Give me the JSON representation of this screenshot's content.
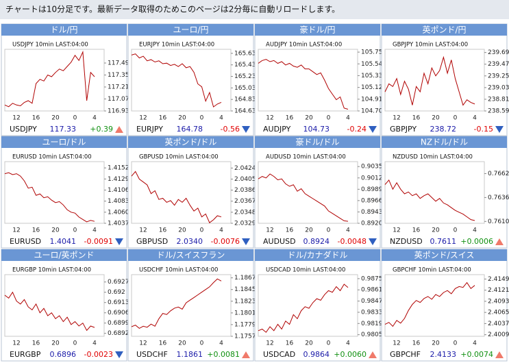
{
  "banner": "チャートは10分足です。最新データ取得のためこのページは2分毎に自動リロードします。",
  "chart_data": [
    {
      "type": "line",
      "title": "ドル/円",
      "subtitle": "USDJPY 10min LAST:04:00",
      "symbol": "USDJPY",
      "last": 117.33,
      "change": {
        "value": 0.39,
        "label": "+0.39"
      },
      "color": "#b00000",
      "xticks": [
        "12",
        "16",
        "20",
        "0",
        "4"
      ],
      "ylim": [
        116.93,
        117.65
      ],
      "yticks": [
        116.93,
        117.07,
        117.21,
        117.35,
        117.49
      ],
      "values": [
        117.0,
        116.98,
        117.02,
        117.0,
        116.99,
        117.03,
        117.05,
        117.02,
        117.25,
        117.3,
        117.28,
        117.35,
        117.33,
        117.38,
        117.42,
        117.4,
        117.45,
        117.5,
        117.58,
        117.52,
        117.62,
        117.05,
        117.38,
        117.33
      ]
    },
    {
      "type": "line",
      "title": "ユーロ/円",
      "subtitle": "EURJPY 10min LAST:04:00",
      "symbol": "EURJPY",
      "last": 164.78,
      "change": {
        "value": -0.56,
        "label": "-0.56"
      },
      "color": "#b00000",
      "xticks": [
        "12",
        "16",
        "20",
        "0",
        "4"
      ],
      "ylim": [
        164.63,
        165.7
      ],
      "yticks": [
        164.63,
        164.83,
        165.03,
        165.23,
        165.43,
        165.63
      ],
      "values": [
        165.6,
        165.62,
        165.55,
        165.58,
        165.5,
        165.52,
        165.48,
        165.5,
        165.45,
        165.46,
        165.42,
        165.44,
        165.4,
        165.45,
        165.38,
        165.4,
        165.3,
        165.1,
        165.05,
        164.8,
        164.95,
        164.7,
        164.75,
        164.78
      ]
    },
    {
      "type": "line",
      "title": "豪ドル/円",
      "subtitle": "AUDJPY 10min LAST:04:00",
      "symbol": "AUDJPY",
      "last": 104.73,
      "change": {
        "value": -0.24,
        "label": "-0.24"
      },
      "color": "#b00000",
      "xticks": [
        "12",
        "16",
        "20",
        "0",
        "4"
      ],
      "ylim": [
        104.7,
        105.8
      ],
      "yticks": [
        {
          "value": 104.7,
          "label": "104.70"
        },
        104.91,
        105.12,
        105.33,
        105.54,
        105.75
      ],
      "values": [
        105.55,
        105.6,
        105.62,
        105.58,
        105.6,
        105.55,
        105.58,
        105.52,
        105.55,
        105.5,
        105.48,
        105.52,
        105.45,
        105.45,
        105.4,
        105.35,
        105.38,
        105.25,
        105.1,
        105.0,
        104.9,
        104.95,
        104.75,
        104.73
      ]
    },
    {
      "type": "line",
      "title": "英ポンド/円",
      "subtitle": "GBPJPY 10min LAST:04:00",
      "symbol": "GBPJPY",
      "last": 238.72,
      "change": {
        "value": -0.15,
        "label": "-0.15"
      },
      "color": "#b00000",
      "xticks": [
        "12",
        "16",
        "20",
        "0",
        "4"
      ],
      "ylim": [
        238.59,
        239.75
      ],
      "yticks": [
        238.59,
        238.81,
        239.03,
        239.25,
        239.47,
        239.69
      ],
      "values": [
        238.95,
        239.1,
        239.05,
        239.2,
        238.9,
        239.15,
        239.0,
        238.7,
        239.05,
        238.95,
        239.3,
        239.1,
        239.4,
        239.25,
        239.35,
        239.6,
        239.3,
        239.55,
        239.2,
        238.95,
        238.7,
        238.8,
        238.75,
        238.72
      ]
    },
    {
      "type": "line",
      "title": "ユーロ/ドル",
      "subtitle": "EURUSD 10min LAST:04:00",
      "symbol": "EURUSD",
      "last": 1.4041,
      "change": {
        "value": -0.0091,
        "label": "-0.0091"
      },
      "color": "#b00000",
      "xticks": [
        "12",
        "16",
        "20",
        "0",
        "4"
      ],
      "ylim": [
        1.4037,
        1.4165
      ],
      "yticks": [
        1.4037,
        {
          "value": 1.406,
          "label": "1.4060"
        },
        1.4083,
        1.4106,
        1.4129,
        1.4152
      ],
      "values": [
        1.414,
        1.4142,
        1.4138,
        1.414,
        1.4135,
        1.4125,
        1.411,
        1.4112,
        1.4095,
        1.4098,
        1.409,
        1.4092,
        1.4085,
        1.408,
        1.4082,
        1.4075,
        1.4065,
        1.406,
        1.4058,
        1.405,
        1.4045,
        1.404,
        1.4043,
        1.4041
      ]
    },
    {
      "type": "line",
      "title": "英ポンド/ドル",
      "subtitle": "GBPUSD 10min LAST:04:00",
      "symbol": "GBPUSD",
      "last": {
        "value": 2.034,
        "label": "2.0340"
      },
      "change": {
        "value": -0.0076,
        "label": "-0.0076"
      },
      "color": "#b00000",
      "xticks": [
        "12",
        "16",
        "20",
        "0",
        "4"
      ],
      "ylim": [
        2.0329,
        2.0435
      ],
      "yticks": [
        2.0329,
        2.0348,
        2.0367,
        2.0386,
        2.0405,
        2.0424
      ],
      "values": [
        2.041,
        2.0418,
        2.0405,
        2.04,
        2.0395,
        2.038,
        2.0385,
        2.037,
        2.0372,
        2.0365,
        2.0368,
        2.036,
        2.037,
        2.0365,
        2.0372,
        2.036,
        2.035,
        2.0355,
        2.034,
        2.0345,
        2.033,
        2.0335,
        2.0342,
        2.034
      ]
    },
    {
      "type": "line",
      "title": "豪ドル/ドル",
      "subtitle": "AUDUSD 10min LAST:04:00",
      "symbol": "AUDUSD",
      "last": 0.8924,
      "change": {
        "value": -0.0048,
        "label": "-0.0048"
      },
      "color": "#b00000",
      "xticks": [
        "12",
        "16",
        "20",
        "0",
        "4"
      ],
      "ylim": [
        0.892,
        0.9045
      ],
      "yticks": [
        {
          "value": 0.892,
          "label": "0.8920"
        },
        0.8943,
        0.8966,
        0.8989,
        0.9012,
        0.9035
      ],
      "values": [
        0.901,
        0.9015,
        0.9012,
        0.902,
        0.9015,
        0.9008,
        0.901,
        0.9,
        0.8995,
        0.8998,
        0.8985,
        0.899,
        0.898,
        0.8975,
        0.897,
        0.8965,
        0.896,
        0.8955,
        0.8945,
        0.894,
        0.8935,
        0.893,
        0.8925,
        0.8924
      ]
    },
    {
      "type": "line",
      "title": "NZドル/ドル",
      "subtitle": "NZDUSD 10min LAST:04:00",
      "symbol": "NZDUSD",
      "last": 0.7611,
      "change": {
        "value": 0.0006,
        "label": "+0.0006"
      },
      "color": "#b00000",
      "xticks": [
        "12",
        "16",
        "20",
        "0",
        "4"
      ],
      "ylim": [
        0.7608,
        0.7675
      ],
      "yticks": [
        {
          "value": 0.761,
          "label": "0.7610"
        },
        0.7636,
        0.7662
      ],
      "values": [
        0.765,
        0.7655,
        0.7645,
        0.7652,
        0.7645,
        0.764,
        0.7642,
        0.7638,
        0.764,
        0.7635,
        0.7638,
        0.764,
        0.7636,
        0.7632,
        0.7635,
        0.763,
        0.7628,
        0.7625,
        0.7622,
        0.762,
        0.7618,
        0.7615,
        0.7612,
        0.7611
      ]
    },
    {
      "type": "line",
      "title": "ユーロ/英ポンド",
      "subtitle": "EURGBP 10min LAST:04:00",
      "symbol": "EURGBP",
      "last": 0.6896,
      "change": {
        "value": -0.0023,
        "label": "-0.0023"
      },
      "color": "#b00000",
      "xticks": [
        "12",
        "16",
        "20",
        "0",
        "4"
      ],
      "ylim": [
        0.689,
        0.6932
      ],
      "yticks": [
        0.6892,
        0.6899,
        0.6906,
        0.6913,
        0.692,
        0.6927
      ],
      "values": [
        0.6918,
        0.6916,
        0.692,
        0.6914,
        0.6912,
        0.6915,
        0.691,
        0.6908,
        0.6912,
        0.6906,
        0.6909,
        0.6904,
        0.6906,
        0.6902,
        0.6904,
        0.69,
        0.6903,
        0.6898,
        0.69,
        0.6897,
        0.6899,
        0.6894,
        0.6897,
        0.6896
      ]
    },
    {
      "type": "line",
      "title": "ドル/スイスフラン",
      "subtitle": "USDCHF 10min LAST:04:00",
      "symbol": "USDCHF",
      "last": 1.1861,
      "change": {
        "value": 0.0081,
        "label": "+0.0081"
      },
      "color": "#b00000",
      "xticks": [
        "12",
        "16",
        "20",
        "0",
        "4"
      ],
      "ylim": [
        1.1757,
        1.1873
      ],
      "yticks": [
        1.1757,
        1.1779,
        1.1801,
        1.1823,
        1.1845,
        1.1867
      ],
      "values": [
        1.1775,
        1.1778,
        1.1772,
        1.1776,
        1.1774,
        1.178,
        1.1776,
        1.179,
        1.18,
        1.1798,
        1.1805,
        1.181,
        1.1812,
        1.1808,
        1.182,
        1.1825,
        1.183,
        1.1835,
        1.184,
        1.1845,
        1.185,
        1.1858,
        1.1865,
        1.1861
      ]
    },
    {
      "type": "line",
      "title": "ドル/カナダドル",
      "subtitle": "USDCAD 10min LAST:04:00",
      "symbol": "USDCAD",
      "last": 0.9864,
      "change": {
        "value": 0.006,
        "label": "+0.0060"
      },
      "color": "#b00000",
      "xticks": [
        "12",
        "16",
        "20",
        "0",
        "4"
      ],
      "ylim": [
        0.9803,
        0.988
      ],
      "yticks": [
        0.9805,
        0.9819,
        0.9833,
        0.9847,
        0.9861,
        0.9875
      ],
      "values": [
        0.981,
        0.9812,
        0.9808,
        0.9815,
        0.981,
        0.9818,
        0.9812,
        0.9822,
        0.9818,
        0.983,
        0.9825,
        0.9835,
        0.984,
        0.9838,
        0.9845,
        0.985,
        0.9848,
        0.9855,
        0.986,
        0.9858,
        0.9865,
        0.986,
        0.9868,
        0.9864
      ]
    },
    {
      "type": "line",
      "title": "英ポンド/スイス",
      "subtitle": "GBPCHF 10min LAST:04:00",
      "symbol": "GBPCHF",
      "last": 2.4133,
      "change": {
        "value": 0.0074,
        "label": "+0.0074"
      },
      "color": "#b00000",
      "xticks": [
        "12",
        "16",
        "20",
        "0",
        "4"
      ],
      "ylim": [
        2.4005,
        2.416
      ],
      "yticks": [
        2.4009,
        2.4037,
        2.4065,
        2.4093,
        2.4121,
        2.4149
      ],
      "values": [
        2.4035,
        2.404,
        2.403,
        2.4045,
        2.4038,
        2.405,
        2.407,
        2.4085,
        2.4095,
        2.409,
        2.41,
        2.4105,
        2.4098,
        2.411,
        2.4105,
        2.4115,
        2.412,
        2.4112,
        2.4125,
        2.413,
        2.4128,
        2.414,
        2.4125,
        2.4133
      ]
    }
  ]
}
